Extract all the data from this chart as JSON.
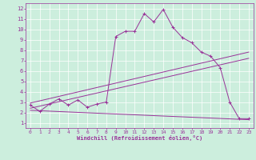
{
  "xlabel": "Windchill (Refroidissement éolien,°C)",
  "background_color": "#cceedd",
  "line_color": "#993399",
  "xlim": [
    -0.5,
    23.5
  ],
  "ylim": [
    0.5,
    12.5
  ],
  "xticks": [
    0,
    1,
    2,
    3,
    4,
    5,
    6,
    7,
    8,
    9,
    10,
    11,
    12,
    13,
    14,
    15,
    16,
    17,
    18,
    19,
    20,
    21,
    22,
    23
  ],
  "yticks": [
    1,
    2,
    3,
    4,
    5,
    6,
    7,
    8,
    9,
    10,
    11,
    12
  ],
  "series1_x": [
    0,
    1,
    2,
    3,
    4,
    5,
    6,
    7,
    8,
    9,
    10,
    11,
    12,
    13,
    14,
    15,
    16,
    17,
    18,
    19,
    20,
    21,
    22,
    23
  ],
  "series1_y": [
    2.7,
    2.1,
    2.8,
    3.3,
    2.7,
    3.2,
    2.5,
    2.8,
    3.0,
    9.3,
    9.8,
    9.8,
    11.5,
    10.7,
    11.9,
    10.2,
    9.2,
    8.7,
    7.8,
    7.4,
    6.3,
    3.0,
    1.4,
    1.4
  ],
  "series2_x": [
    0,
    23
  ],
  "series2_y": [
    2.9,
    7.8
  ],
  "series3_x": [
    0,
    23
  ],
  "series3_y": [
    2.4,
    7.2
  ],
  "series4_x": [
    0,
    23
  ],
  "series4_y": [
    2.2,
    1.3
  ]
}
